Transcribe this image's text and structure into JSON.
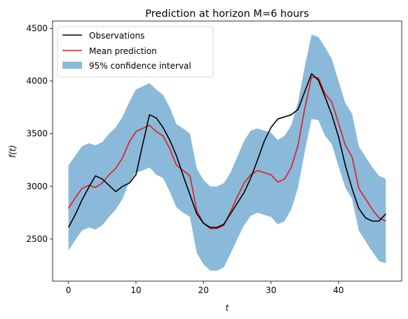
{
  "chart_data": {
    "type": "line",
    "title": "Prediction at horizon M=6 hours",
    "xlabel": "t",
    "ylabel": "f(t)",
    "xlim": [
      -2.35,
      49.35
    ],
    "ylim": [
      2100,
      4570
    ],
    "xticks": [
      0,
      10,
      20,
      30,
      40
    ],
    "yticks": [
      2500,
      3000,
      3500,
      4000,
      4500
    ],
    "x": [
      0,
      1,
      2,
      3,
      4,
      5,
      6,
      7,
      8,
      9,
      10,
      11,
      12,
      13,
      14,
      15,
      16,
      17,
      18,
      19,
      20,
      21,
      22,
      23,
      24,
      25,
      26,
      27,
      28,
      29,
      30,
      31,
      32,
      33,
      34,
      35,
      36,
      37,
      38,
      39,
      40,
      41,
      42,
      43,
      44,
      45,
      46,
      47
    ],
    "series": [
      {
        "name": "Observations",
        "color": "#000000",
        "values": [
          2610,
          2730,
          2870,
          2990,
          3100,
          3070,
          3010,
          2950,
          3000,
          3030,
          3110,
          3400,
          3680,
          3650,
          3560,
          3440,
          3290,
          3100,
          2920,
          2740,
          2650,
          2610,
          2610,
          2640,
          2740,
          2840,
          2940,
          3080,
          3250,
          3430,
          3560,
          3640,
          3660,
          3680,
          3730,
          3900,
          4070,
          4010,
          3850,
          3680,
          3470,
          3200,
          2980,
          2790,
          2700,
          2670,
          2670,
          2740
        ]
      },
      {
        "name": "Mean prediction",
        "color": "#e31a1c",
        "values": [
          2790,
          2890,
          2980,
          3010,
          2990,
          3030,
          3110,
          3170,
          3270,
          3420,
          3520,
          3550,
          3580,
          3520,
          3480,
          3360,
          3200,
          3150,
          3100,
          2770,
          2650,
          2600,
          2600,
          2630,
          2760,
          2900,
          3030,
          3110,
          3150,
          3130,
          3110,
          3040,
          3070,
          3180,
          3390,
          3740,
          4040,
          4030,
          3880,
          3800,
          3600,
          3390,
          3280,
          2980,
          2880,
          2780,
          2700,
          2670
        ]
      }
    ],
    "band": {
      "name": "95% confidence interval",
      "color": "#8bb9da",
      "upper": [
        3200,
        3290,
        3380,
        3410,
        3390,
        3420,
        3500,
        3560,
        3660,
        3800,
        3920,
        3950,
        3980,
        3920,
        3870,
        3750,
        3590,
        3550,
        3500,
        3170,
        3060,
        3000,
        3000,
        3030,
        3130,
        3280,
        3430,
        3530,
        3550,
        3530,
        3510,
        3440,
        3480,
        3580,
        3800,
        4140,
        4440,
        4420,
        4320,
        4210,
        4000,
        3790,
        3690,
        3380,
        3280,
        3180,
        3100,
        3070
      ],
      "lower": [
        2390,
        2490,
        2580,
        2610,
        2590,
        2630,
        2710,
        2780,
        2880,
        3040,
        3130,
        3150,
        3180,
        3110,
        3080,
        2950,
        2800,
        2750,
        2710,
        2370,
        2260,
        2200,
        2200,
        2230,
        2360,
        2500,
        2630,
        2720,
        2750,
        2730,
        2710,
        2640,
        2670,
        2780,
        2990,
        3330,
        3640,
        3630,
        3480,
        3400,
        3190,
        2990,
        2880,
        2580,
        2480,
        2380,
        2290,
        2270
      ]
    },
    "legend_position": "upper-left",
    "grid": false
  }
}
